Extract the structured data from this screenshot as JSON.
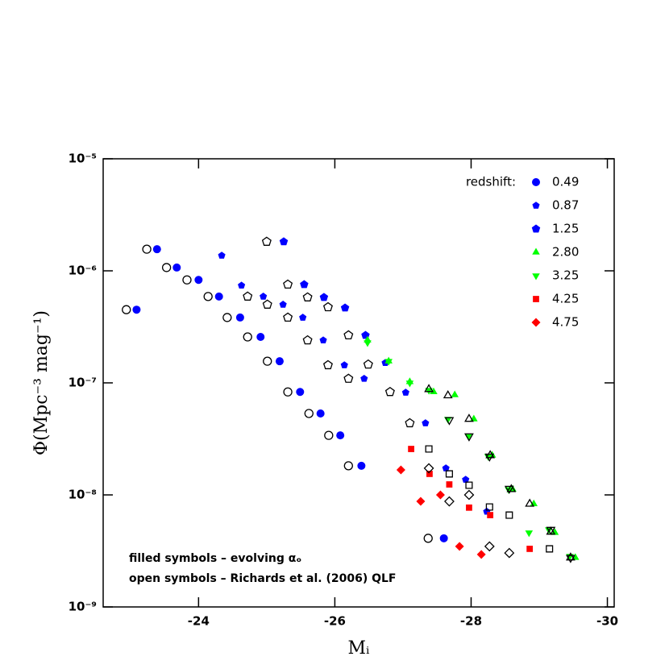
{
  "chart_data": {
    "type": "scatter",
    "xlabel": "Mᵢ",
    "ylabel": "Φ(Mpc⁻³ mag⁻¹)",
    "legend_title": "redshift:",
    "legend": "upper right",
    "annotations": [
      "filled symbols – evolving αₒ",
      "open symbols – Richards et al. (2006) QLF"
    ],
    "xlim": [
      -22.6,
      -30.1
    ],
    "xticks": [
      -24,
      -26,
      -28,
      -30
    ],
    "ylim": [
      1e-09,
      1e-05
    ],
    "yscale": "log",
    "yticks": [
      {
        "value": 1e-09,
        "label": "10⁻⁹"
      },
      {
        "value": 1e-08,
        "label": "10⁻⁸"
      },
      {
        "value": 1e-07,
        "label": "10⁻⁷"
      },
      {
        "value": 1e-06,
        "label": "10⁻⁶"
      },
      {
        "value": 1e-05,
        "label": "10⁻⁵"
      }
    ],
    "series": [
      {
        "name": "0.49",
        "color": "#0000ff",
        "marker": "circle",
        "filled": true,
        "x": [
          -23.09,
          -23.39,
          -23.68,
          -24.0,
          -24.3,
          -24.61,
          -24.91,
          -25.19,
          -25.49,
          -25.79,
          -26.08,
          -26.39,
          -27.6
        ],
        "values": [
          4.5e-07,
          1.56e-06,
          1.07e-06,
          8.3e-07,
          5.9e-07,
          3.83e-07,
          2.57e-07,
          1.56e-07,
          8.3e-08,
          5.33e-08,
          3.4e-08,
          1.82e-08,
          4.1e-09
        ]
      },
      {
        "name": "0.87",
        "color": "#0000ff",
        "marker": "pentagon-small",
        "filled": true,
        "x": [
          -24.34,
          -24.63,
          -24.95,
          -25.24,
          -25.53,
          -25.83,
          -26.14,
          -26.43,
          -26.74,
          -27.04,
          -27.33,
          -27.63,
          -27.92,
          -28.23
        ],
        "values": [
          1.37e-06,
          7.4e-07,
          5.9e-07,
          5e-07,
          3.83e-07,
          2.4e-07,
          1.44e-07,
          1.09e-07,
          1.51e-07,
          8.2e-08,
          4.37e-08,
          1.73e-08,
          1.37e-08,
          7.1e-09
        ]
      },
      {
        "name": "1.25",
        "color": "#0000ff",
        "marker": "pentagon",
        "filled": true,
        "x": [
          -25.25,
          -25.55,
          -25.84,
          -26.15,
          -26.45
        ],
        "values": [
          1.82e-06,
          7.55e-07,
          5.8e-07,
          4.67e-07,
          2.66e-07
        ]
      },
      {
        "name": "2.80",
        "color": "#00ff00",
        "marker": "triangle-up",
        "filled": true,
        "x": [
          -26.48,
          -26.79,
          -27.1,
          -27.45,
          -27.76,
          -28.04,
          -28.31,
          -28.61,
          -28.92,
          -29.23,
          -29.53
        ],
        "values": [
          2.4e-07,
          1.56e-07,
          1.02e-07,
          8.3e-08,
          7.8e-08,
          4.75e-08,
          2.25e-08,
          1.12e-08,
          8.3e-09,
          4.6e-09,
          2.75e-09
        ]
      },
      {
        "name": "3.25",
        "color": "#00ff00",
        "marker": "triangle-down",
        "filled": true,
        "x": [
          -26.48,
          -26.79,
          -27.1,
          -27.38,
          -27.66,
          -27.96,
          -28.25,
          -28.55,
          -28.85,
          -29.14,
          -29.45
        ],
        "values": [
          2.29e-07,
          1.56e-07,
          1e-07,
          8.6e-08,
          4.75e-08,
          3.35e-08,
          2.21e-08,
          1.12e-08,
          4.6e-09,
          4.9e-09,
          2.84e-09
        ]
      },
      {
        "name": "4.25",
        "color": "#ff0000",
        "marker": "square",
        "filled": true,
        "x": [
          -27.12,
          -27.39,
          -27.68,
          -27.97,
          -28.28,
          -28.86
        ],
        "values": [
          2.57e-08,
          1.54e-08,
          1.24e-08,
          7.7e-09,
          6.6e-09,
          3.3e-09
        ]
      },
      {
        "name": "4.75",
        "color": "#ff0000",
        "marker": "diamond",
        "filled": true,
        "x": [
          -26.97,
          -27.26,
          -27.55,
          -27.83,
          -28.15
        ],
        "values": [
          1.67e-08,
          8.75e-09,
          1e-08,
          3.47e-09,
          2.94e-09
        ]
      },
      {
        "color": "#000000",
        "marker": "circle",
        "filled": false,
        "x": [
          -22.94,
          -23.24,
          -23.53,
          -23.83,
          -24.14,
          -24.42,
          -24.72,
          -25.01,
          -25.31,
          -25.62,
          -25.91,
          -26.2,
          -27.37
        ],
        "values": [
          4.5e-07,
          1.56e-06,
          1.07e-06,
          8.3e-07,
          5.9e-07,
          3.83e-07,
          2.57e-07,
          1.56e-07,
          8.3e-08,
          5.33e-08,
          3.4e-08,
          1.82e-08,
          4.1e-09
        ]
      },
      {
        "color": "#000000",
        "marker": "pentagon",
        "filled": false,
        "x": [
          -25.0,
          -25.31,
          -25.6,
          -25.9,
          -26.2,
          -26.49,
          -26.81,
          -27.1,
          -24.72,
          -25.01,
          -25.31,
          -25.6,
          -25.9,
          -26.2
        ],
        "values": [
          1.82e-06,
          7.55e-07,
          5.8e-07,
          4.74e-07,
          2.66e-07,
          1.46e-07,
          8.3e-08,
          4.37e-08,
          5.9e-07,
          5e-07,
          3.83e-07,
          2.4e-07,
          1.44e-07,
          1.09e-07
        ]
      },
      {
        "color": "#000000",
        "marker": "triangle-up",
        "filled": false,
        "x": [
          -27.38,
          -27.66,
          -27.97,
          -28.28,
          -28.59,
          -28.86,
          -29.17,
          -29.46
        ],
        "values": [
          8.75e-08,
          7.7e-08,
          4.75e-08,
          2.25e-08,
          1.12e-08,
          8.3e-09,
          4.67e-09,
          2.75e-09
        ]
      },
      {
        "color": "#000000",
        "marker": "triangle-down",
        "filled": false,
        "x": [
          -27.68,
          -27.97,
          -28.27,
          -28.56,
          -29.17,
          -29.46
        ],
        "values": [
          4.67e-08,
          3.35e-08,
          2.21e-08,
          1.14e-08,
          4.9e-09,
          2.75e-09
        ]
      },
      {
        "color": "#000000",
        "marker": "square",
        "filled": false,
        "x": [
          -27.38,
          -27.68,
          -27.97,
          -28.27,
          -28.56,
          -29.15
        ],
        "values": [
          2.57e-08,
          1.54e-08,
          1.22e-08,
          7.8e-09,
          6.6e-09,
          3.3e-09
        ]
      },
      {
        "color": "#000000",
        "marker": "diamond",
        "filled": false,
        "x": [
          -27.38,
          -27.68,
          -27.97,
          -28.27,
          -28.56
        ],
        "values": [
          1.73e-08,
          8.75e-09,
          1e-08,
          3.47e-09,
          3.03e-09
        ]
      }
    ]
  }
}
